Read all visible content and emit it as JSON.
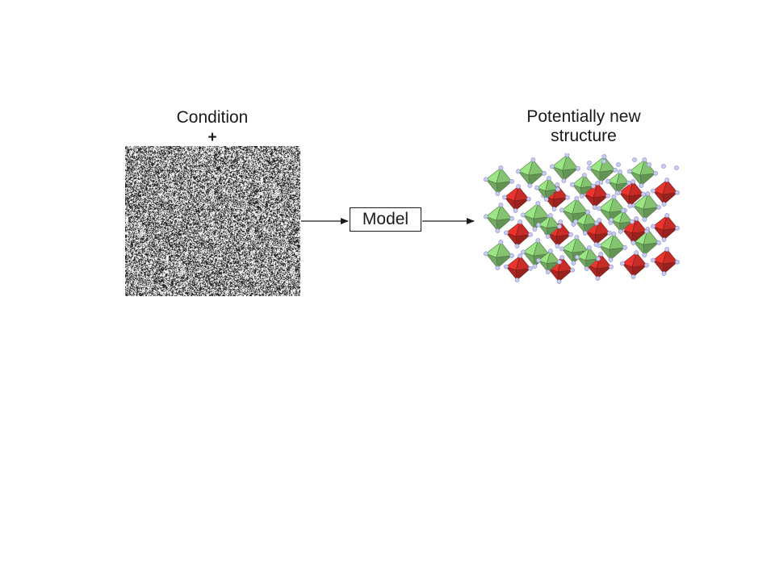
{
  "input": {
    "title": "Condition",
    "operator": "+"
  },
  "model": {
    "label": "Model"
  },
  "output": {
    "title_line1": "Potentially new",
    "title_line2": "structure"
  },
  "colors": {
    "text": "#1a1a1a",
    "arrow": "#1a1a1a",
    "octahedron_green": "#8fd47a",
    "octahedron_red": "#d9302a",
    "atom": "#c8cbee"
  },
  "icons": {
    "noise": "random-noise-image",
    "structure": "crystal-structure-image"
  }
}
